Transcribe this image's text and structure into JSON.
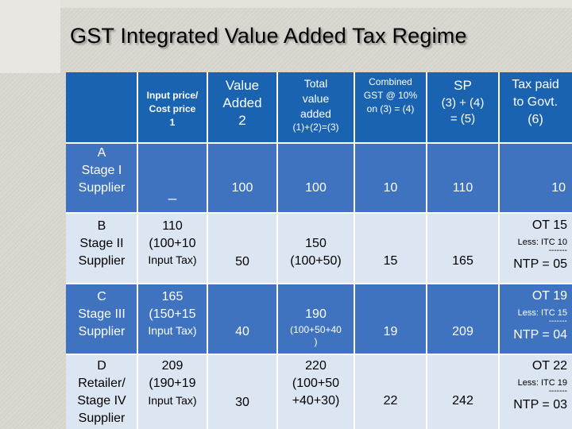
{
  "title": "GST Integrated Value Added Tax Regime",
  "header": {
    "input_price": "Input price/",
    "input_price_2": "Cost price",
    "input_price_3": "1",
    "value_added": "Value",
    "value_added_2": "Added",
    "value_added_3": "2",
    "total_value": "Total",
    "total_value_2": "value",
    "total_value_3": "added",
    "total_value_formula": "(1)+(2)=(3)",
    "gst": "Combined",
    "gst_2": "GST @ 10%",
    "gst_3": "on (3) = (4)",
    "sp": "SP",
    "sp_2": "(3) + (4)",
    "sp_3": "= (5)",
    "tax_paid": "Tax paid",
    "tax_paid_2": "to Govt.",
    "tax_paid_3": "(6)"
  },
  "rows": [
    {
      "stage_1": "A",
      "stage_2": "Stage I",
      "stage_3": "Supplier",
      "input": "_",
      "value_added": "100",
      "total": "100",
      "gst": "10",
      "sp": "110",
      "tax": "10"
    },
    {
      "stage_1": "B",
      "stage_2": "Stage II",
      "stage_3": "Supplier",
      "input_1": "110",
      "input_2": "(100+10",
      "input_3": "Input Tax)",
      "value_added": "50",
      "total_1": "150",
      "total_2": "(100+50)",
      "gst": "15",
      "sp": "165",
      "tax_ot": "OT 15",
      "tax_less": "Less: ITC 10",
      "tax_dash": "-------",
      "tax_ntp": "NTP = 05"
    },
    {
      "stage_1": "C",
      "stage_2": "Stage III",
      "stage_3": "Supplier",
      "input_1": "165",
      "input_2": "(150+15",
      "input_3": "Input Tax)",
      "value_added": "40",
      "total_1": "190",
      "total_2": "(100+50+40",
      "total_3": ")",
      "gst": "19",
      "sp": "209",
      "tax_ot": "OT 19",
      "tax_less": "Less: ITC 15",
      "tax_dash": "-------",
      "tax_ntp": "NTP = 04"
    },
    {
      "stage_1": "D",
      "stage_2": "Retailer/",
      "stage_3": "Stage IV",
      "stage_4": "Supplier",
      "input_1": "209",
      "input_2": "(190+19",
      "input_3": "Input Tax)",
      "value_added": "30",
      "total_1": "220",
      "total_2": "(100+50",
      "total_3": "+40+30)",
      "gst": "22",
      "sp": "242",
      "tax_ot": "OT 22",
      "tax_less": "Less: ITC 19",
      "tax_dash": "-------",
      "tax_ntp": "NTP = 03"
    }
  ],
  "colors": {
    "header_bg": "#1a63b1",
    "dark_row": "#3f72bf",
    "light_row": "#dce5f2"
  }
}
